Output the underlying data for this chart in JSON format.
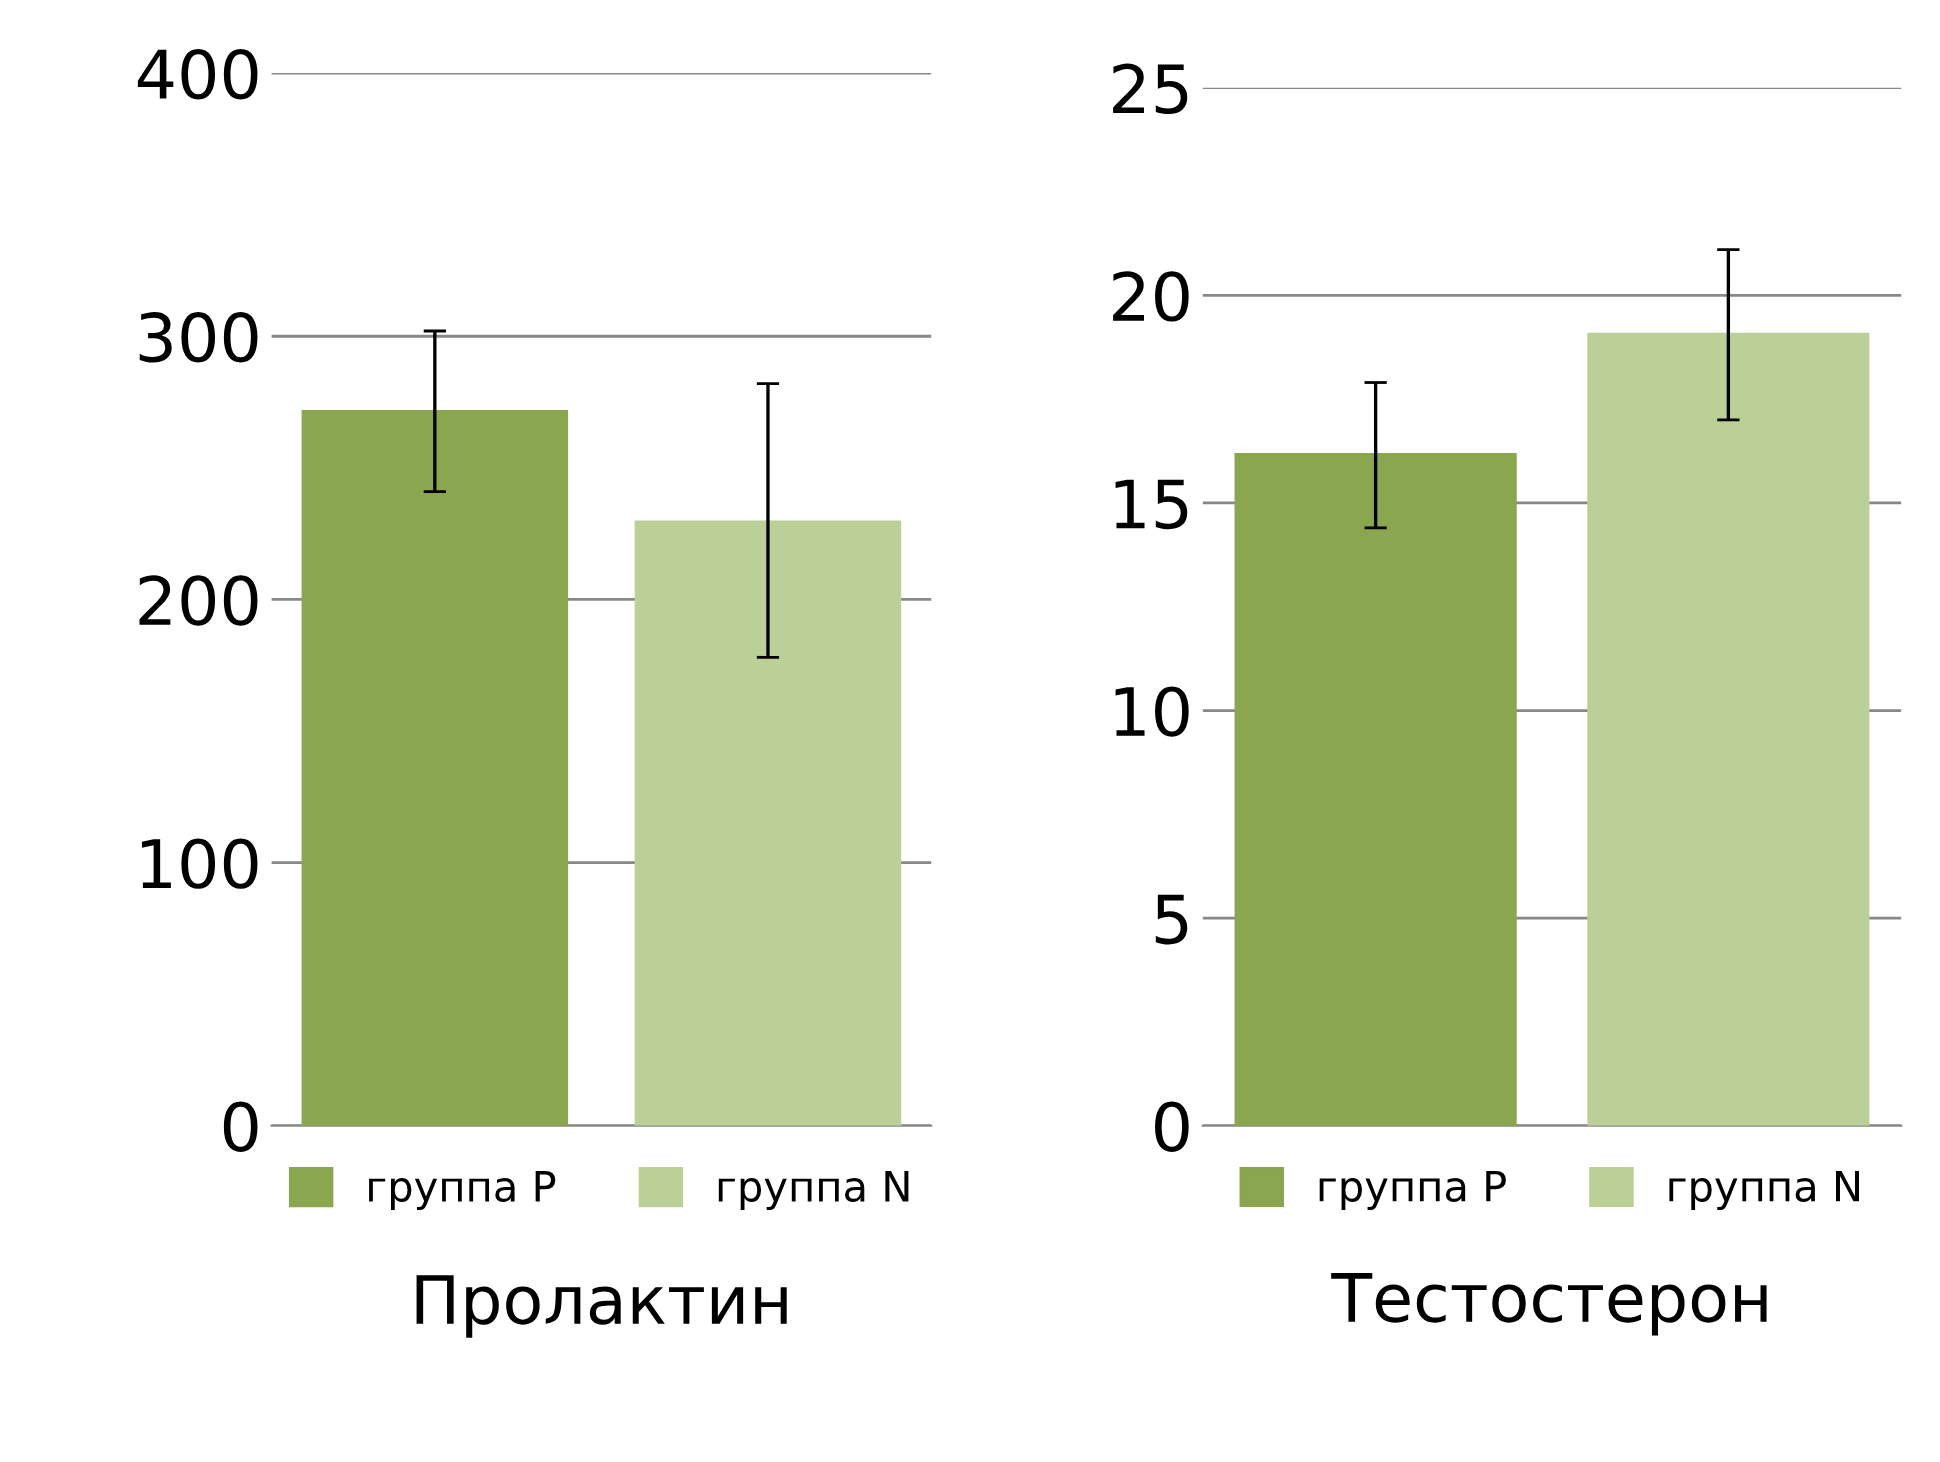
{
  "chart_data": [
    {
      "type": "bar",
      "title": "Пролактин",
      "categories": [
        null
      ],
      "series": [
        {
          "name": "группа P",
          "color": "#8aa64e",
          "values": [
            272
          ],
          "errors": [
            [
              241,
              302
            ]
          ]
        },
        {
          "name": "группа N",
          "color": "#bbd097",
          "values": [
            230
          ],
          "errors": [
            [
              178,
              282
            ]
          ]
        }
      ],
      "ylim": [
        0,
        400
      ],
      "yticks": [
        0,
        100,
        200,
        300,
        400
      ],
      "grid": "y",
      "legend": "bottom"
    },
    {
      "type": "bar",
      "title": "Тестостерон",
      "categories": [
        null
      ],
      "series": [
        {
          "name": "группа P",
          "color": "#8aa64e",
          "values": [
            16.2
          ],
          "errors": [
            [
              14.4,
              17.9
            ]
          ]
        },
        {
          "name": "группа N",
          "color": "#bbd097",
          "values": [
            19.1
          ],
          "errors": [
            [
              17.0,
              21.1
            ]
          ]
        }
      ],
      "ylim": [
        0,
        25
      ],
      "yticks": [
        0,
        5,
        10,
        15,
        20,
        25
      ],
      "grid": "y",
      "legend": "bottom"
    }
  ]
}
